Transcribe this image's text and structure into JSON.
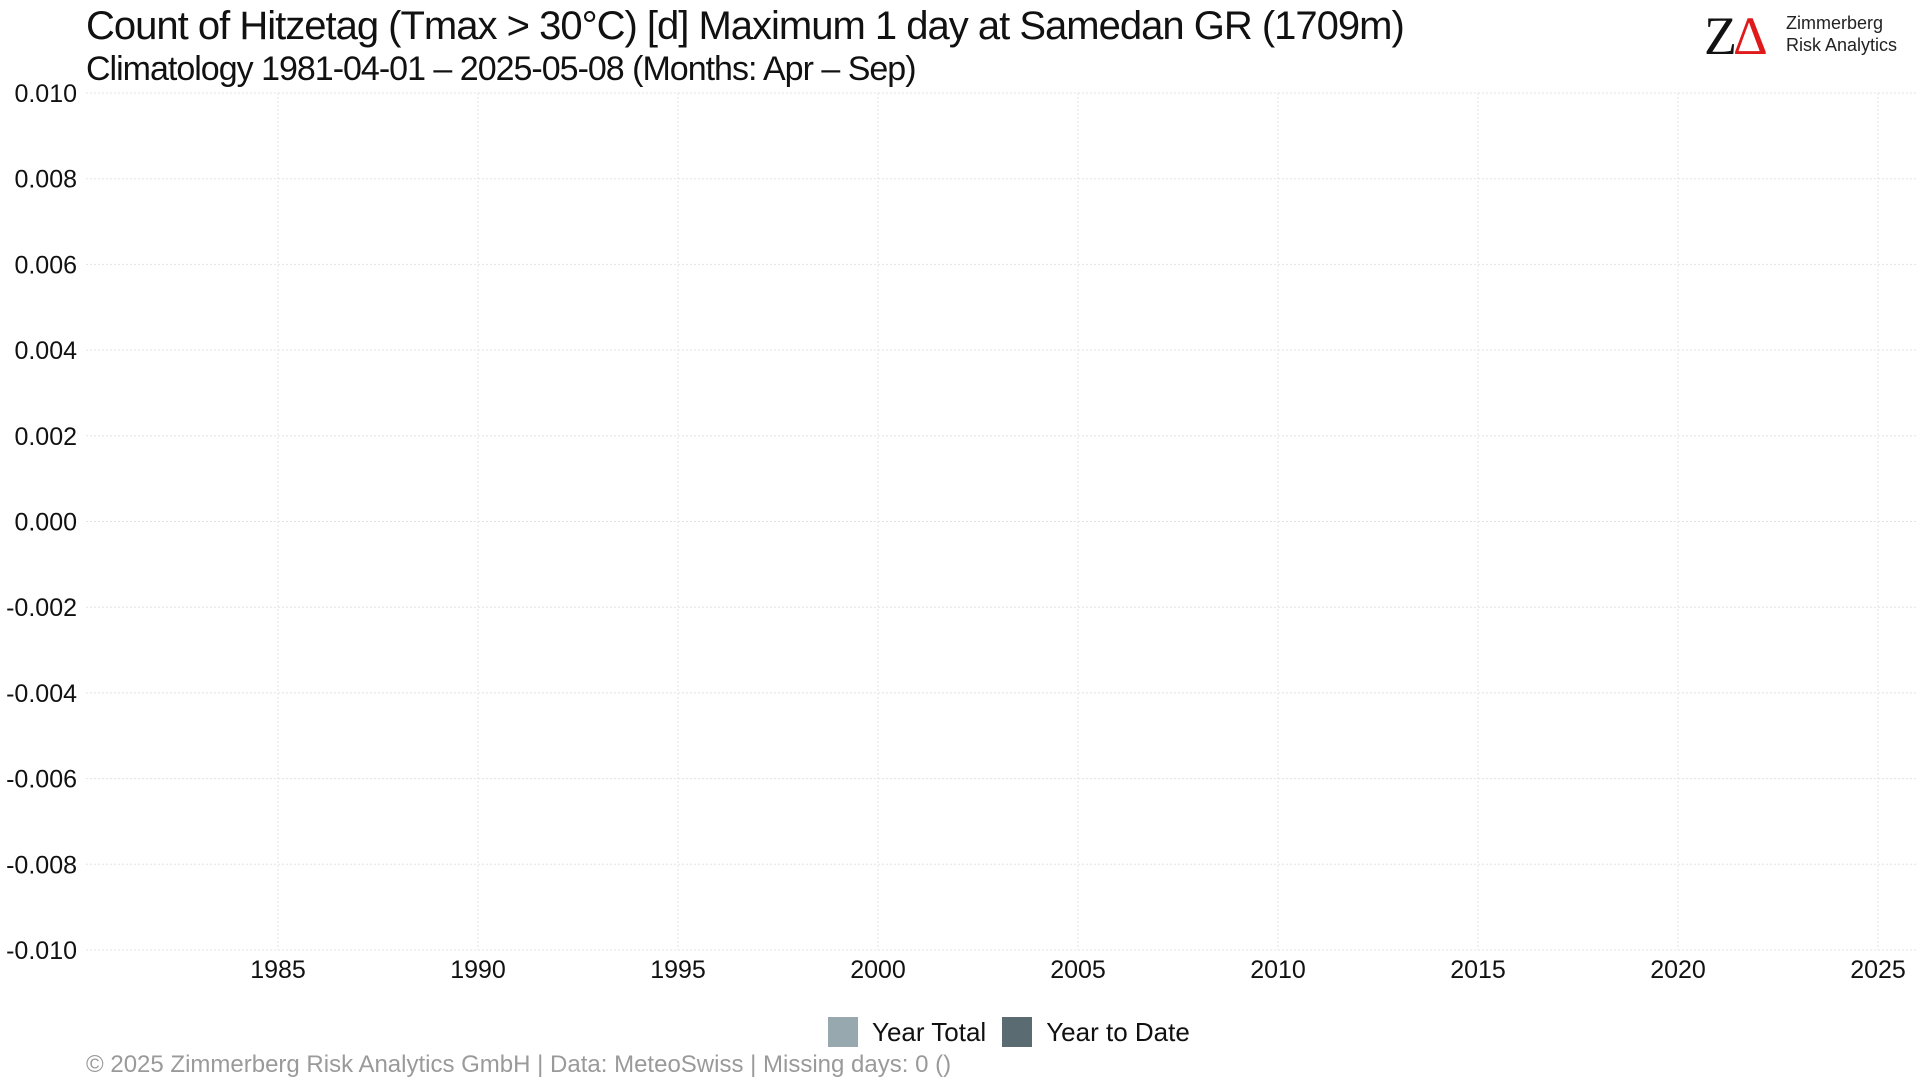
{
  "header": {
    "title": "Count of Hitzetag (Tmax > 30°C) [d] Maximum 1 day at Samedan  GR (1709m)",
    "subtitle": "Climatology 1981-04-01 – 2025-05-08 (Months: Apr – Sep)"
  },
  "logo": {
    "mark_z": "Z",
    "mark_delta": "Δ",
    "line1": "Zimmerberg",
    "line2": "Risk Analytics",
    "mark_color": "#111111",
    "delta_color": "#e01a1a"
  },
  "legend": {
    "items": [
      {
        "label": "Year Total",
        "color": "#97a8ae"
      },
      {
        "label": "Year to Date",
        "color": "#5a6b72"
      }
    ]
  },
  "footer": {
    "text": "©  2025 Zimmerberg Risk Analytics GmbH | Data: MeteoSwiss | Missing days: 0 ()"
  },
  "chart_data": {
    "type": "bar",
    "title": "Count of Hitzetag (Tmax > 30°C) [d] Maximum 1 day at Samedan  GR (1709m)",
    "subtitle": "Climatology 1981-04-01 – 2025-05-08 (Months: Apr – Sep)",
    "xlabel": "",
    "ylabel": "",
    "xlim": [
      1980.2,
      2026.0
    ],
    "ylim": [
      -0.01,
      0.01
    ],
    "x_ticks": [
      1985,
      1990,
      1995,
      2000,
      2005,
      2010,
      2015,
      2020,
      2025
    ],
    "x_tick_labels": [
      "1985",
      "1990",
      "1995",
      "2000",
      "2005",
      "2010",
      "2015",
      "2020",
      "2025"
    ],
    "y_ticks": [
      0.01,
      0.008,
      0.006,
      0.004,
      0.002,
      0.0,
      -0.002,
      -0.004,
      -0.006,
      -0.008,
      -0.01
    ],
    "y_tick_labels": [
      "0.010",
      "0.008",
      "0.006",
      "0.004",
      "0.002",
      "0.000",
      "-0.002",
      "-0.004",
      "-0.006",
      "-0.008",
      "-0.010"
    ],
    "grid": true,
    "legend_position": "bottom",
    "series": [
      {
        "name": "Year Total",
        "values": []
      },
      {
        "name": "Year to Date",
        "values": []
      }
    ]
  }
}
